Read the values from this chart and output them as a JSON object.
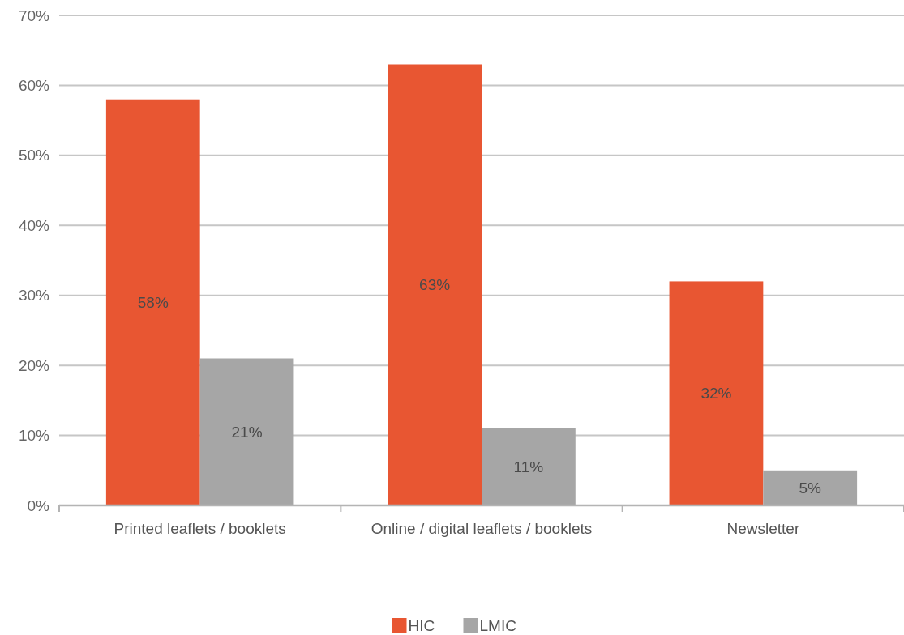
{
  "chart_data": {
    "type": "bar",
    "categories": [
      "Printed leaflets / booklets",
      "Online / digital leaflets / booklets",
      "Newsletter"
    ],
    "series": [
      {
        "name": "HIC",
        "color": "#e85632",
        "values": [
          58,
          63,
          32
        ],
        "value_labels": [
          "58%",
          "63%",
          "32%"
        ]
      },
      {
        "name": "LMIC",
        "color": "#a6a6a6",
        "values": [
          21,
          11,
          5
        ],
        "value_labels": [
          "21%",
          "11%",
          "5%"
        ]
      }
    ],
    "ylim": [
      0,
      70
    ],
    "yticks": [
      {
        "value": 0,
        "label": "0%"
      },
      {
        "value": 10,
        "label": "10%"
      },
      {
        "value": 20,
        "label": "20%"
      },
      {
        "value": 30,
        "label": "30%"
      },
      {
        "value": 40,
        "label": "40%"
      },
      {
        "value": 50,
        "label": "50%"
      },
      {
        "value": 60,
        "label": "60%"
      },
      {
        "value": 70,
        "label": "70%"
      }
    ],
    "grid": "y",
    "legend": "bottom"
  }
}
